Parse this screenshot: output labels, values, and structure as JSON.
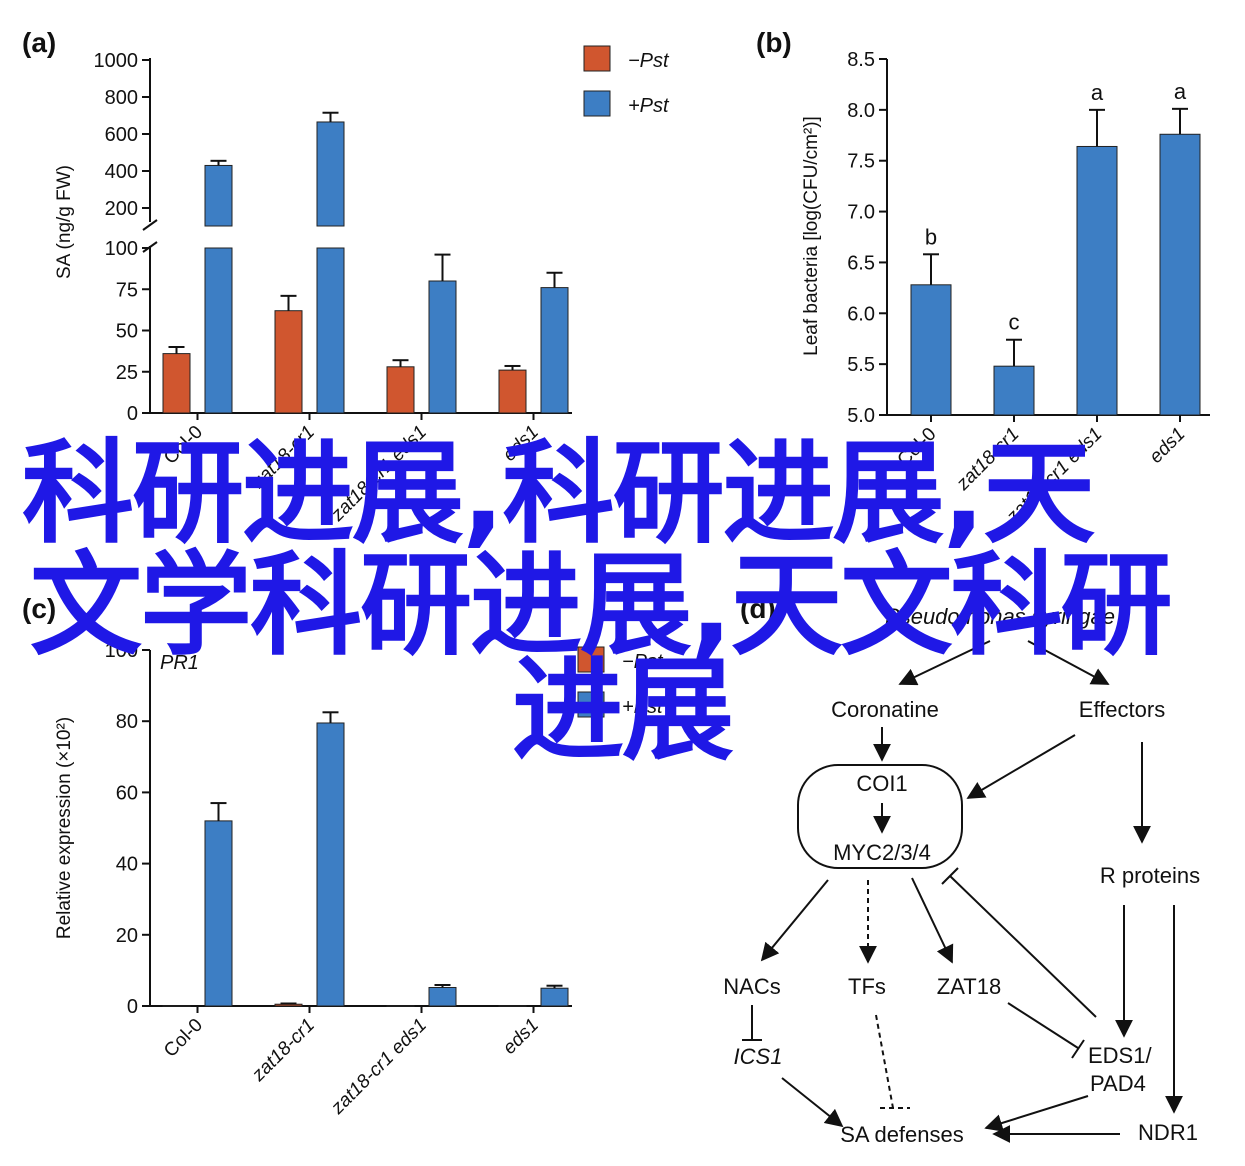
{
  "colors": {
    "minus": "#d0562f",
    "plus": "#3d7ec4",
    "axis": "#111111",
    "overlay": "#1f18e6"
  },
  "legend": {
    "minus_label": "−Pst",
    "plus_label": "+Pst"
  },
  "chart_data": [
    {
      "panel": "(a)",
      "type": "bar",
      "ylabel": "SA (ng/g FW)",
      "categories": [
        "Col-0",
        "zat18-cr1",
        "zat18-cr1 eds1",
        "eds1"
      ],
      "series": [
        {
          "name": "−Pst",
          "values": [
            36,
            62,
            28,
            26
          ],
          "errors": [
            4,
            9,
            4,
            2.5
          ]
        },
        {
          "name": "+Pst",
          "values": [
            430,
            665,
            80,
            76
          ],
          "errors": [
            25,
            50,
            16,
            9
          ]
        }
      ],
      "lower_ticks": [
        "0",
        "25",
        "50",
        "75",
        "100"
      ],
      "upper_ticks": [
        "200",
        "400",
        "600",
        "800",
        "1000"
      ],
      "ylim_lower": [
        0,
        100
      ],
      "ylim_upper": [
        100,
        1000
      ],
      "axis_break": true
    },
    {
      "panel": "(b)",
      "type": "bar",
      "ylabel": "Leaf bacteria [log(CFU/cm²)]",
      "categories": [
        "Col-0",
        "zat18-cr1",
        "zat18-cr1 eds1",
        "eds1"
      ],
      "values": [
        6.28,
        5.48,
        7.64,
        7.76
      ],
      "errors": [
        0.3,
        0.26,
        0.36,
        0.25
      ],
      "letters": [
        "b",
        "c",
        "a",
        "a"
      ],
      "ylim": [
        5.0,
        8.5
      ],
      "ticks": [
        "5.0",
        "5.5",
        "6.0",
        "6.5",
        "7.0",
        "7.5",
        "8.0",
        "8.5"
      ]
    },
    {
      "panel": "(c)",
      "type": "bar",
      "title": "PR1",
      "ylabel": "Relative expression (×10²)",
      "categories": [
        "Col-0",
        "zat18-cr1",
        "zat18-cr1 eds1",
        "eds1"
      ],
      "series": [
        {
          "name": "−Pst",
          "values": [
            0.05,
            0.5,
            0.05,
            0.05
          ],
          "errors": [
            0,
            0.2,
            0,
            0
          ]
        },
        {
          "name": "+Pst",
          "values": [
            52,
            79.5,
            5.2,
            5
          ],
          "errors": [
            5,
            3,
            0.7,
            0.7
          ]
        }
      ],
      "ylim": [
        0,
        100
      ],
      "ticks": [
        "0",
        "20",
        "40",
        "60",
        "80",
        "100"
      ]
    }
  ],
  "diagram": {
    "panel": "(d)",
    "title": "Pseudomonas syringae",
    "nodes": {
      "coronatine": "Coronatine",
      "effectors": "Effectors",
      "coi1": "COI1",
      "myc": "MYC2/3/4",
      "rproteins": "R proteins",
      "nacs": "NACs",
      "tfs": "TFs",
      "zat18": "ZAT18",
      "ics1": "ICS1",
      "eds1": "EDS1/",
      "pad4": "PAD4",
      "sa": "SA defenses",
      "ndr1": "NDR1"
    }
  },
  "overlay_text": [
    "科研进展,科研进展,天",
    "文学科研进展,天文科研",
    "进展"
  ]
}
